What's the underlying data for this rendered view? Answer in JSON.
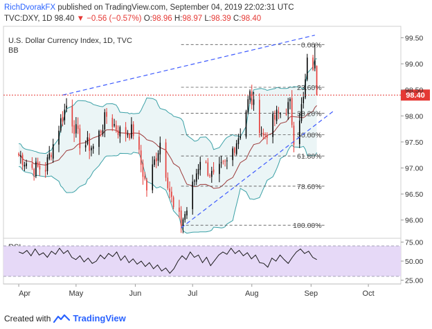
{
  "header": {
    "author": "RichDvorakFX",
    "published_text": "published on TradingView.com, September 04, 2019 22:02:31 UTC",
    "symbol_line": "TVC:DXY, 1D",
    "last": "98.40",
    "change": "▼ −0.56 (−0.57%)",
    "ohlc": {
      "o_label": "O:",
      "o": "98.96",
      "h_label": "H:",
      "h": "98.97",
      "l_label": "L:",
      "l": "98.39",
      "c_label": "C:",
      "c": "98.40"
    }
  },
  "footer": {
    "created_with": "Created with",
    "brand": "TradingView"
  },
  "colors": {
    "up": "#000000",
    "down": "#e53935",
    "bb_line": "#3aa0a6",
    "bb_fill": "#3aa0a6",
    "basis": "#9c3b3b",
    "trend": "#3d5afe",
    "price_line": "#e53935",
    "rsi": "#1a1a1a",
    "rsi_band": "#e6d9f7"
  },
  "chart_data": [
    {
      "type": "candlestick",
      "title": "U.S. Dollar Currency Index, 1D, TVC",
      "indicator_label": "BB",
      "y_ticks": [
        "99.50",
        "99.00",
        "98.50",
        "98.00",
        "97.50",
        "97.00",
        "96.50",
        "96.00"
      ],
      "ylim": [
        95.65,
        99.72
      ],
      "x_ticks": [
        "Apr",
        "May",
        "Jun",
        "Jul",
        "Aug",
        "Sep",
        "Oct"
      ],
      "last_price_label": "98.40",
      "fibonacci": [
        {
          "label": "0.00%",
          "value": 99.37
        },
        {
          "label": "23.60%",
          "value": 98.55
        },
        {
          "label": "38.20%",
          "value": 98.05
        },
        {
          "label": "50.00%",
          "value": 97.64
        },
        {
          "label": "61.80%",
          "value": 97.23
        },
        {
          "label": "78.60%",
          "value": 96.65
        },
        {
          "label": "100.00%",
          "value": 95.9
        }
      ],
      "trendlines": [
        {
          "from": [
            "Apr 24",
            98.4
          ],
          "to": [
            "Sep 03",
            99.55
          ]
        },
        {
          "from": [
            "Jun 25",
            95.85
          ],
          "to": [
            "Sep 13",
            98.1
          ]
        }
      ],
      "close_path": [
        [
          "Apr 01",
          97.25
        ],
        [
          "Apr 08",
          97.0
        ],
        [
          "Apr 15",
          97.0
        ],
        [
          "Apr 22",
          97.8
        ],
        [
          "Apr 26",
          98.2
        ],
        [
          "May 03",
          97.5
        ],
        [
          "May 10",
          97.4
        ],
        [
          "May 17",
          98.0
        ],
        [
          "May 24",
          97.7
        ],
        [
          "May 31",
          97.7
        ],
        [
          "Jun 07",
          96.6
        ],
        [
          "Jun 14",
          97.5
        ],
        [
          "Jun 21",
          96.2
        ],
        [
          "Jun 25",
          95.95
        ],
        [
          "Jun 28",
          96.2
        ],
        [
          "Jul 05",
          97.2
        ],
        [
          "Jul 12",
          96.8
        ],
        [
          "Jul 19",
          97.1
        ],
        [
          "Jul 26",
          97.7
        ],
        [
          "Jul 31",
          98.4
        ],
        [
          "Aug 07",
          97.6
        ],
        [
          "Aug 14",
          98.0
        ],
        [
          "Aug 21",
          98.2
        ],
        [
          "Aug 23",
          97.6
        ],
        [
          "Aug 28",
          98.3
        ],
        [
          "Aug 30",
          99.0
        ],
        [
          "Sep 03",
          98.96
        ],
        [
          "Sep 04",
          98.4
        ]
      ]
    },
    {
      "type": "line",
      "title": "RSI",
      "y_ticks": [
        "75.00",
        "50.00",
        "25.00"
      ],
      "ylim": [
        20,
        80
      ],
      "band": [
        30,
        70
      ],
      "values": [
        62,
        60,
        64,
        57,
        66,
        58,
        61,
        55,
        63,
        59,
        67,
        60,
        64,
        55,
        52,
        57,
        49,
        54,
        47,
        50,
        58,
        53,
        60,
        56,
        62,
        51,
        57,
        48,
        53,
        46,
        50,
        43,
        48,
        40,
        45,
        37,
        41,
        34,
        40,
        50,
        57,
        52,
        62,
        55,
        58,
        48,
        55,
        44,
        51,
        58,
        62,
        59,
        67,
        60,
        64,
        57,
        61,
        53,
        58,
        48,
        47,
        42,
        54,
        50,
        58,
        52,
        47,
        55,
        62,
        66,
        60,
        63,
        55,
        52
      ]
    }
  ]
}
